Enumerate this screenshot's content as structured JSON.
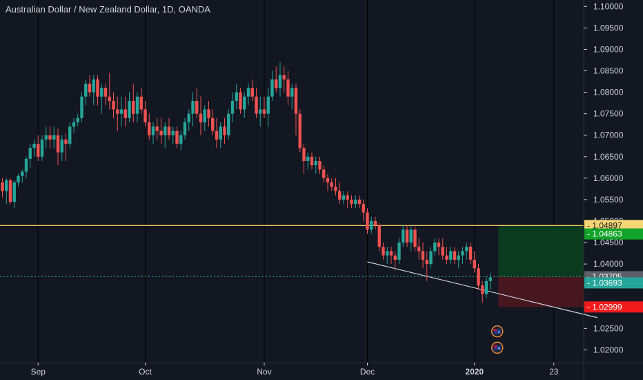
{
  "header": {
    "title": "Australian Dollar / New Zealand Dollar, 1D, OANDA"
  },
  "colors": {
    "background": "#131722",
    "up": "#26a69a",
    "down": "#ef5350",
    "grid": "#000000",
    "horizontal_line": "#f0c35a",
    "trendline": "#d1d4dc",
    "target_zone": "#0b3d20",
    "stop_zone": "#4a1620",
    "tag_yellow": "#f7d774",
    "tag_green": "#12a32a",
    "tag_teal": "#26a69a",
    "tag_grey": "#5d606b",
    "tag_red": "#f21b1b"
  },
  "chart_data": {
    "type": "candlestick",
    "title": "Australian Dollar / New Zealand Dollar, 1D, OANDA",
    "symbol": "AUDNZD",
    "interval": "1D",
    "ylim": [
      1.017,
      1.1015
    ],
    "y_ticks": [
      "1.10000",
      "1.09500",
      "1.09000",
      "1.08500",
      "1.08000",
      "1.07500",
      "1.07000",
      "1.06500",
      "1.06000",
      "1.05500",
      "1.05000",
      "1.04500",
      "1.04000",
      "1.03500",
      "1.03000",
      "1.02500",
      "1.02000"
    ],
    "x_ticks": [
      {
        "label": "Sep",
        "index": 9,
        "bold": false
      },
      {
        "label": "Oct",
        "index": 36,
        "bold": false
      },
      {
        "label": "Nov",
        "index": 66,
        "bold": false
      },
      {
        "label": "Dec",
        "index": 92,
        "bold": false
      },
      {
        "label": "2020",
        "index": 119,
        "bold": true
      },
      {
        "label": "23",
        "index": 139,
        "bold": false
      }
    ],
    "candles": [
      [
        1.059,
        1.06,
        1.0555,
        1.057
      ],
      [
        1.057,
        1.06,
        1.054,
        1.0595
      ],
      [
        1.0595,
        1.06,
        1.054,
        1.0545
      ],
      [
        1.0545,
        1.0595,
        1.053,
        1.059
      ],
      [
        1.059,
        1.061,
        1.058,
        1.0605
      ],
      [
        1.0605,
        1.062,
        1.059,
        1.0615
      ],
      [
        1.0615,
        1.065,
        1.06,
        1.0645
      ],
      [
        1.0645,
        1.068,
        1.0625,
        1.067
      ],
      [
        1.067,
        1.069,
        1.065,
        1.068
      ],
      [
        1.068,
        1.07,
        1.064,
        1.065
      ],
      [
        1.065,
        1.07,
        1.064,
        1.069
      ],
      [
        1.069,
        1.072,
        1.067,
        1.07
      ],
      [
        1.07,
        1.072,
        1.067,
        1.069
      ],
      [
        1.069,
        1.072,
        1.067,
        1.07
      ],
      [
        1.07,
        1.0715,
        1.063,
        1.066
      ],
      [
        1.066,
        1.07,
        1.064,
        1.069
      ],
      [
        1.069,
        1.0705,
        1.064,
        1.068
      ],
      [
        1.068,
        1.073,
        1.067,
        1.072
      ],
      [
        1.072,
        1.074,
        1.0705,
        1.073
      ],
      [
        1.073,
        1.075,
        1.072,
        1.074
      ],
      [
        1.074,
        1.08,
        1.073,
        1.079
      ],
      [
        1.079,
        1.083,
        1.077,
        1.082
      ],
      [
        1.082,
        1.084,
        1.079,
        1.08
      ],
      [
        1.08,
        1.084,
        1.077,
        1.083
      ],
      [
        1.083,
        1.084,
        1.077,
        1.079
      ],
      [
        1.079,
        1.082,
        1.075,
        1.081
      ],
      [
        1.081,
        1.082,
        1.077,
        1.079
      ],
      [
        1.079,
        1.0845,
        1.076,
        1.078
      ],
      [
        1.078,
        1.08,
        1.074,
        1.076
      ],
      [
        1.076,
        1.079,
        1.071,
        1.075
      ],
      [
        1.075,
        1.079,
        1.072,
        1.076
      ],
      [
        1.076,
        1.079,
        1.072,
        1.074
      ],
      [
        1.074,
        1.08,
        1.073,
        1.078
      ],
      [
        1.078,
        1.082,
        1.073,
        1.075
      ],
      [
        1.075,
        1.08,
        1.073,
        1.079
      ],
      [
        1.079,
        1.081,
        1.075,
        1.076
      ],
      [
        1.076,
        1.078,
        1.072,
        1.073
      ],
      [
        1.073,
        1.075,
        1.069,
        1.07
      ],
      [
        1.07,
        1.073,
        1.068,
        1.072
      ],
      [
        1.072,
        1.074,
        1.069,
        1.071
      ],
      [
        1.071,
        1.074,
        1.068,
        1.07
      ],
      [
        1.07,
        1.073,
        1.067,
        1.072
      ],
      [
        1.072,
        1.074,
        1.069,
        1.07
      ],
      [
        1.07,
        1.072,
        1.068,
        1.071
      ],
      [
        1.071,
        1.072,
        1.067,
        1.068
      ],
      [
        1.068,
        1.071,
        1.0665,
        1.07
      ],
      [
        1.07,
        1.074,
        1.069,
        1.073
      ],
      [
        1.073,
        1.076,
        1.071,
        1.075
      ],
      [
        1.075,
        1.08,
        1.072,
        1.078
      ],
      [
        1.078,
        1.081,
        1.074,
        1.075
      ],
      [
        1.075,
        1.079,
        1.07,
        1.073
      ],
      [
        1.073,
        1.077,
        1.071,
        1.076
      ],
      [
        1.076,
        1.078,
        1.072,
        1.074
      ],
      [
        1.074,
        1.076,
        1.07,
        1.071
      ],
      [
        1.071,
        1.074,
        1.067,
        1.069
      ],
      [
        1.069,
        1.073,
        1.067,
        1.072
      ],
      [
        1.072,
        1.074,
        1.068,
        1.07
      ],
      [
        1.07,
        1.076,
        1.069,
        1.075
      ],
      [
        1.075,
        1.08,
        1.073,
        1.078
      ],
      [
        1.078,
        1.082,
        1.076,
        1.08
      ],
      [
        1.08,
        1.081,
        1.075,
        1.076
      ],
      [
        1.076,
        1.08,
        1.074,
        1.079
      ],
      [
        1.079,
        1.082,
        1.077,
        1.081
      ],
      [
        1.081,
        1.083,
        1.078,
        1.079
      ],
      [
        1.079,
        1.081,
        1.074,
        1.075
      ],
      [
        1.075,
        1.079,
        1.072,
        1.076
      ],
      [
        1.076,
        1.079,
        1.074,
        1.075
      ],
      [
        1.075,
        1.081,
        1.072,
        1.079
      ],
      [
        1.079,
        1.085,
        1.078,
        1.083
      ],
      [
        1.083,
        1.086,
        1.08,
        1.081
      ],
      [
        1.081,
        1.087,
        1.079,
        1.084
      ],
      [
        1.084,
        1.086,
        1.08,
        1.083
      ],
      [
        1.083,
        1.085,
        1.077,
        1.079
      ],
      [
        1.079,
        1.082,
        1.076,
        1.081
      ],
      [
        1.081,
        1.082,
        1.07,
        1.075
      ],
      [
        1.075,
        1.076,
        1.066,
        1.067
      ],
      [
        1.067,
        1.068,
        1.061,
        1.064
      ],
      [
        1.064,
        1.066,
        1.062,
        1.065
      ],
      [
        1.065,
        1.066,
        1.062,
        1.063
      ],
      [
        1.063,
        1.065,
        1.061,
        1.064
      ],
      [
        1.064,
        1.065,
        1.061,
        1.062
      ],
      [
        1.062,
        1.063,
        1.059,
        1.06
      ],
      [
        1.06,
        1.061,
        1.057,
        1.059
      ],
      [
        1.059,
        1.06,
        1.057,
        1.058
      ],
      [
        1.058,
        1.06,
        1.056,
        1.057
      ],
      [
        1.057,
        1.059,
        1.054,
        1.055
      ],
      [
        1.055,
        1.057,
        1.054,
        1.056
      ],
      [
        1.056,
        1.057,
        1.053,
        1.055
      ],
      [
        1.055,
        1.056,
        1.053,
        1.054
      ],
      [
        1.054,
        1.056,
        1.053,
        1.055
      ],
      [
        1.055,
        1.056,
        1.053,
        1.054
      ],
      [
        1.054,
        1.055,
        1.05,
        1.052
      ],
      [
        1.052,
        1.053,
        1.047,
        1.048
      ],
      [
        1.048,
        1.051,
        1.047,
        1.05
      ],
      [
        1.05,
        1.051,
        1.048,
        1.049
      ],
      [
        1.049,
        1.0495,
        1.043,
        1.044
      ],
      [
        1.044,
        1.045,
        1.041,
        1.042
      ],
      [
        1.042,
        1.044,
        1.04,
        1.043
      ],
      [
        1.043,
        1.044,
        1.04,
        1.042
      ],
      [
        1.042,
        1.043,
        1.039,
        1.041
      ],
      [
        1.041,
        1.046,
        1.04,
        1.045
      ],
      [
        1.045,
        1.049,
        1.044,
        1.048
      ],
      [
        1.048,
        1.049,
        1.044,
        1.045
      ],
      [
        1.045,
        1.049,
        1.043,
        1.048
      ],
      [
        1.048,
        1.049,
        1.043,
        1.044
      ],
      [
        1.044,
        1.046,
        1.041,
        1.043
      ],
      [
        1.043,
        1.045,
        1.039,
        1.041
      ],
      [
        1.041,
        1.043,
        1.036,
        1.04
      ],
      [
        1.04,
        1.044,
        1.039,
        1.043
      ],
      [
        1.043,
        1.046,
        1.042,
        1.045
      ],
      [
        1.045,
        1.046,
        1.042,
        1.044
      ],
      [
        1.044,
        1.046,
        1.041,
        1.042
      ],
      [
        1.042,
        1.044,
        1.04,
        1.041
      ],
      [
        1.041,
        1.044,
        1.04,
        1.043
      ],
      [
        1.043,
        1.044,
        1.04,
        1.041
      ],
      [
        1.041,
        1.043,
        1.039,
        1.042
      ],
      [
        1.042,
        1.044,
        1.04,
        1.043
      ],
      [
        1.043,
        1.045,
        1.041,
        1.044
      ],
      [
        1.044,
        1.045,
        1.04,
        1.041
      ],
      [
        1.041,
        1.043,
        1.038,
        1.039
      ],
      [
        1.039,
        1.04,
        1.034,
        1.035
      ],
      [
        1.035,
        1.036,
        1.031,
        1.033
      ],
      [
        1.033,
        1.037,
        1.032,
        1.036
      ],
      [
        1.036,
        1.038,
        1.034,
        1.0369
      ]
    ],
    "horizontal_line": 1.04897,
    "current_price_line": 1.03705,
    "trendline": {
      "start": {
        "index": 92,
        "price": 1.0405
      },
      "end": {
        "index": 150,
        "price": 1.0275
      }
    },
    "position": {
      "start_index": 125,
      "end_index": 150,
      "entry": 1.03705,
      "target": 1.04897,
      "stop": 1.02999
    },
    "price_tags": [
      {
        "value": "1.04897",
        "color_key": "tag_yellow",
        "text_color": "#131722"
      },
      {
        "value": "1.04863",
        "color_key": "tag_green",
        "text_color": "#ffffff",
        "price": 1.047
      },
      {
        "value": "1.03705",
        "color_key": "tag_grey",
        "text_color": "#ffffff"
      },
      {
        "value": "1.03693",
        "color_key": "tag_teal",
        "text_color": "#ffffff",
        "price": 1.0356
      },
      {
        "value": "1.02999",
        "color_key": "tag_red",
        "text_color": "#ffffff"
      }
    ],
    "event_markers": [
      {
        "index": 123,
        "price": 1.0243,
        "icon": "australia-flag-icon"
      },
      {
        "index": 123,
        "price": 1.0205,
        "icon": "australia-flag-icon"
      }
    ],
    "grid": true
  }
}
